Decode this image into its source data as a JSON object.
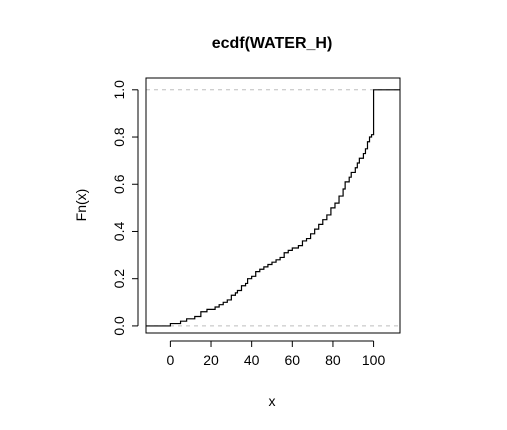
{
  "chart_data": {
    "type": "line",
    "subtype": "ecdf-step",
    "title": "ecdf(WATER_H)",
    "xlabel": "x",
    "ylabel": "Fn(x)",
    "xlim": [
      -12,
      113
    ],
    "ylim": [
      -0.03,
      1.05
    ],
    "xticks": [
      0,
      20,
      40,
      60,
      80,
      100
    ],
    "xtick_labels": [
      "0",
      "20",
      "40",
      "60",
      "80",
      "100"
    ],
    "yticks": [
      0.0,
      0.2,
      0.4,
      0.6,
      0.8,
      1.0
    ],
    "ytick_labels": [
      "0.0",
      "0.2",
      "0.4",
      "0.6",
      "0.8",
      "1.0"
    ],
    "reference_lines": [
      0,
      1
    ],
    "line_color": "#000000",
    "reference_line_color": "#bebebe",
    "grid": false,
    "legend": "none",
    "points": [
      [
        -12,
        0.0
      ],
      [
        0,
        0.0
      ],
      [
        0,
        0.01
      ],
      [
        5,
        0.01
      ],
      [
        5,
        0.02
      ],
      [
        8,
        0.02
      ],
      [
        8,
        0.03
      ],
      [
        12,
        0.03
      ],
      [
        12,
        0.04
      ],
      [
        15,
        0.04
      ],
      [
        15,
        0.06
      ],
      [
        18,
        0.06
      ],
      [
        18,
        0.07
      ],
      [
        22,
        0.07
      ],
      [
        22,
        0.08
      ],
      [
        24,
        0.08
      ],
      [
        24,
        0.09
      ],
      [
        26,
        0.09
      ],
      [
        26,
        0.1
      ],
      [
        28,
        0.1
      ],
      [
        28,
        0.11
      ],
      [
        30,
        0.11
      ],
      [
        30,
        0.13
      ],
      [
        32,
        0.13
      ],
      [
        32,
        0.14
      ],
      [
        33,
        0.14
      ],
      [
        33,
        0.15
      ],
      [
        35,
        0.15
      ],
      [
        35,
        0.17
      ],
      [
        37,
        0.17
      ],
      [
        37,
        0.18
      ],
      [
        38,
        0.18
      ],
      [
        38,
        0.2
      ],
      [
        40,
        0.2
      ],
      [
        40,
        0.21
      ],
      [
        42,
        0.21
      ],
      [
        42,
        0.23
      ],
      [
        44,
        0.23
      ],
      [
        44,
        0.24
      ],
      [
        46,
        0.24
      ],
      [
        46,
        0.25
      ],
      [
        48,
        0.25
      ],
      [
        48,
        0.26
      ],
      [
        50,
        0.26
      ],
      [
        50,
        0.27
      ],
      [
        52,
        0.27
      ],
      [
        52,
        0.28
      ],
      [
        54,
        0.28
      ],
      [
        54,
        0.29
      ],
      [
        56,
        0.29
      ],
      [
        56,
        0.31
      ],
      [
        58,
        0.31
      ],
      [
        58,
        0.32
      ],
      [
        60,
        0.32
      ],
      [
        60,
        0.33
      ],
      [
        63,
        0.33
      ],
      [
        63,
        0.34
      ],
      [
        65,
        0.34
      ],
      [
        65,
        0.36
      ],
      [
        67,
        0.36
      ],
      [
        67,
        0.37
      ],
      [
        69,
        0.37
      ],
      [
        69,
        0.39
      ],
      [
        71,
        0.39
      ],
      [
        71,
        0.41
      ],
      [
        73,
        0.41
      ],
      [
        73,
        0.43
      ],
      [
        75,
        0.43
      ],
      [
        75,
        0.45
      ],
      [
        77,
        0.45
      ],
      [
        77,
        0.47
      ],
      [
        79,
        0.47
      ],
      [
        79,
        0.5
      ],
      [
        81,
        0.5
      ],
      [
        81,
        0.52
      ],
      [
        83,
        0.52
      ],
      [
        83,
        0.55
      ],
      [
        85,
        0.55
      ],
      [
        85,
        0.58
      ],
      [
        86,
        0.58
      ],
      [
        86,
        0.61
      ],
      [
        88,
        0.61
      ],
      [
        88,
        0.63
      ],
      [
        89,
        0.63
      ],
      [
        89,
        0.65
      ],
      [
        91,
        0.65
      ],
      [
        91,
        0.67
      ],
      [
        92,
        0.67
      ],
      [
        92,
        0.69
      ],
      [
        93,
        0.69
      ],
      [
        93,
        0.71
      ],
      [
        95,
        0.71
      ],
      [
        95,
        0.73
      ],
      [
        96,
        0.73
      ],
      [
        96,
        0.75
      ],
      [
        97,
        0.75
      ],
      [
        97,
        0.78
      ],
      [
        98,
        0.78
      ],
      [
        98,
        0.8
      ],
      [
        99,
        0.8
      ],
      [
        99,
        0.81
      ],
      [
        100,
        0.81
      ],
      [
        100,
        1.0
      ],
      [
        113,
        1.0
      ]
    ]
  }
}
